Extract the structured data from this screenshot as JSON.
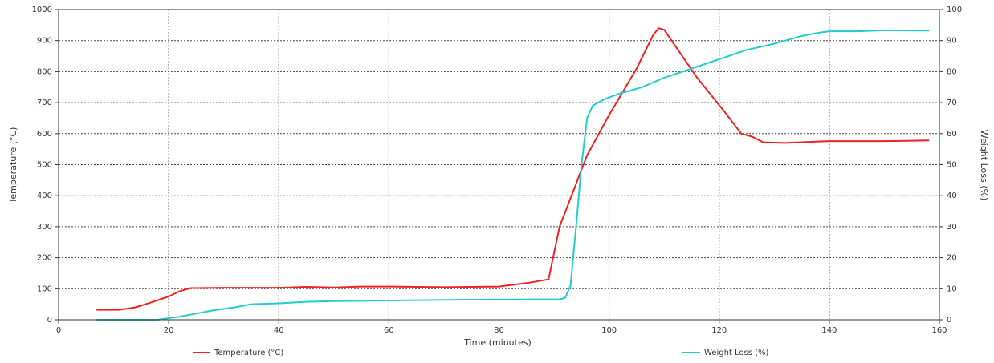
{
  "chart_data": {
    "type": "line",
    "xlabel": "Time (minutes)",
    "ylabel_left": "Temperature (°C)",
    "ylabel_right": "Weight Loss (%)",
    "xlim": [
      0,
      160
    ],
    "ylim_left": [
      0,
      1000
    ],
    "ylim_right": [
      0,
      100
    ],
    "x_ticks": [
      0,
      20,
      40,
      60,
      80,
      100,
      120,
      140,
      160
    ],
    "y_left_ticks": [
      0,
      100,
      200,
      300,
      400,
      500,
      600,
      700,
      800,
      900,
      1000
    ],
    "y_right_ticks": [
      0,
      10,
      20,
      30,
      40,
      50,
      60,
      70,
      80,
      90,
      100
    ],
    "grid": true,
    "legend_position": "bottom",
    "series": [
      {
        "name": "Temperature (°C)",
        "axis": "left",
        "color": "#ee2222",
        "points": [
          [
            7,
            32
          ],
          [
            11,
            32
          ],
          [
            14,
            40
          ],
          [
            17,
            57
          ],
          [
            20,
            75
          ],
          [
            22,
            92
          ],
          [
            24,
            102
          ],
          [
            30,
            103
          ],
          [
            40,
            103
          ],
          [
            45,
            106
          ],
          [
            50,
            104
          ],
          [
            55,
            107
          ],
          [
            60,
            107
          ],
          [
            70,
            105
          ],
          [
            80,
            107
          ],
          [
            85,
            118
          ],
          [
            89,
            130
          ],
          [
            91,
            300
          ],
          [
            96,
            530
          ],
          [
            100,
            660
          ],
          [
            105,
            810
          ],
          [
            108,
            918
          ],
          [
            109,
            940
          ],
          [
            110,
            935
          ],
          [
            116,
            780
          ],
          [
            121,
            670
          ],
          [
            124,
            600
          ],
          [
            126,
            590
          ],
          [
            128,
            572
          ],
          [
            132,
            570
          ],
          [
            140,
            576
          ],
          [
            150,
            576
          ],
          [
            158,
            578
          ]
        ]
      },
      {
        "name": "Weight Loss (%)",
        "axis": "right",
        "color": "#22cccc",
        "points": [
          [
            7,
            0
          ],
          [
            18,
            0
          ],
          [
            22,
            1
          ],
          [
            25,
            2
          ],
          [
            28,
            3
          ],
          [
            32,
            4
          ],
          [
            35,
            5
          ],
          [
            40,
            5.3
          ],
          [
            45,
            5.8
          ],
          [
            50,
            6.0
          ],
          [
            60,
            6.2
          ],
          [
            70,
            6.4
          ],
          [
            80,
            6.5
          ],
          [
            91,
            6.6
          ],
          [
            92,
            7
          ],
          [
            93,
            11
          ],
          [
            94,
            30
          ],
          [
            95,
            50
          ],
          [
            96,
            65
          ],
          [
            97,
            69
          ],
          [
            99,
            71
          ],
          [
            102,
            73
          ],
          [
            106,
            75
          ],
          [
            110,
            78
          ],
          [
            115,
            81
          ],
          [
            120,
            84
          ],
          [
            125,
            87
          ],
          [
            130,
            89
          ],
          [
            135,
            91.5
          ],
          [
            138,
            92.5
          ],
          [
            140,
            93
          ],
          [
            145,
            93
          ],
          [
            150,
            93.3
          ],
          [
            158,
            93.2
          ]
        ]
      }
    ]
  }
}
